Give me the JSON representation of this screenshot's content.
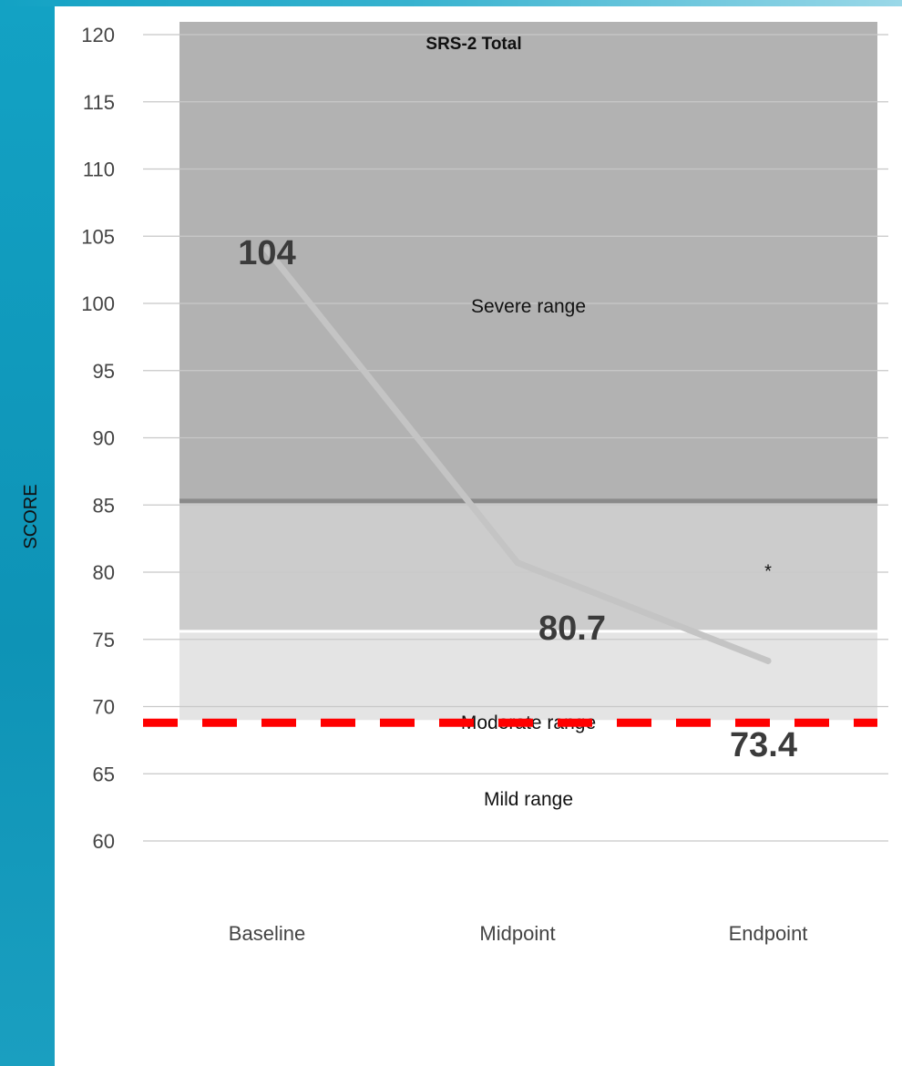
{
  "chart_data": {
    "type": "line",
    "title": "SRS-2 Total",
    "xlabel": "",
    "ylabel": "SCORE",
    "categories": [
      "Baseline",
      "Midpoint",
      "Endpoint"
    ],
    "series": [
      {
        "values": [
          104,
          80.7,
          73.4
        ],
        "color": "#c4c4c4"
      }
    ],
    "data_labels": [
      "104",
      "80.7",
      "73.4"
    ],
    "ylim": [
      60,
      120
    ],
    "yticks": [
      "60",
      "65",
      "70",
      "75",
      "80",
      "85",
      "90",
      "95",
      "100",
      "105",
      "110",
      "115",
      "120"
    ],
    "grid": true,
    "bands": [
      {
        "label": "Severe range",
        "from": 85.3,
        "to": 121,
        "color": "#b2b2b2"
      },
      {
        "label": "Moderate range",
        "from": 75.6,
        "to": 85.3,
        "color": "#cccccc"
      },
      {
        "label": "Mild range",
        "from": 69,
        "to": 75.6,
        "color": "#e4e4e4"
      }
    ],
    "threshold": {
      "value": 68.8,
      "style": "dashed",
      "color": "#ff0000"
    },
    "annotations": [
      {
        "text": "*",
        "category": "Endpoint",
        "value": 80.3
      }
    ]
  }
}
